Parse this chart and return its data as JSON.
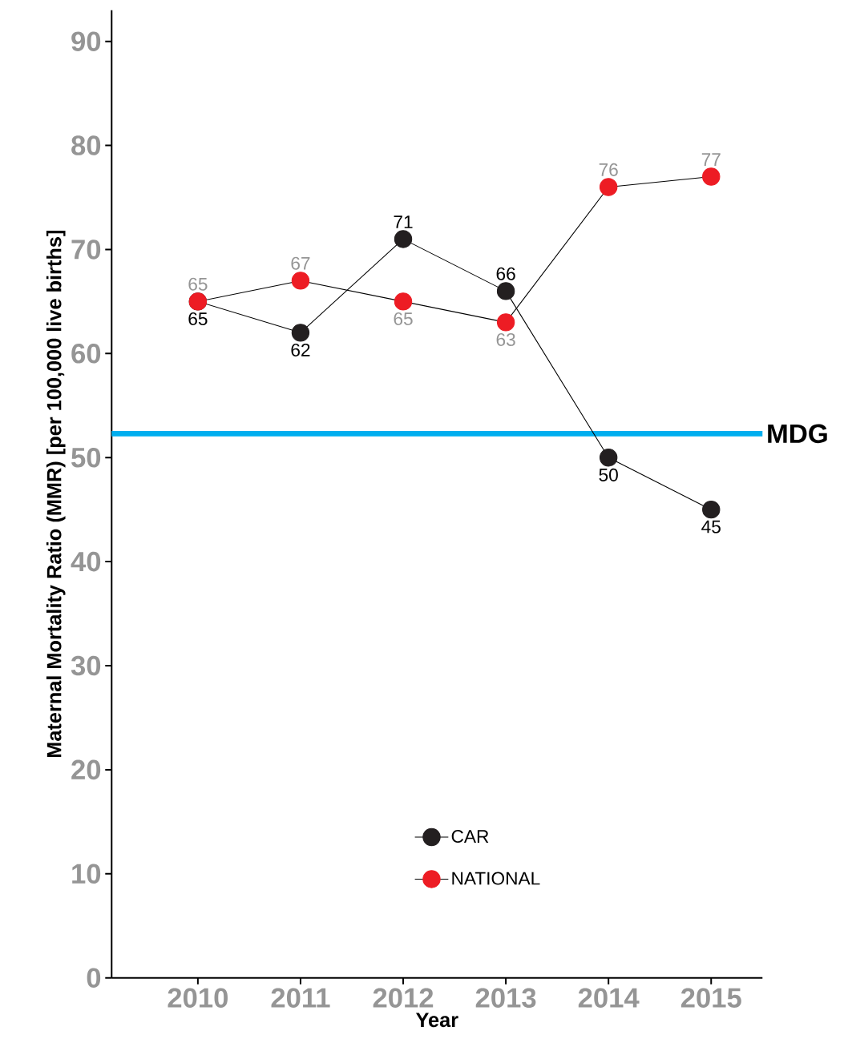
{
  "chart_data": {
    "type": "line",
    "xlabel": "Year",
    "ylabel": "Maternal Mortality Ratio (MMR) [per 100,000 live births]",
    "categories": [
      "2010",
      "2011",
      "2012",
      "2013",
      "2014",
      "2015"
    ],
    "series": [
      {
        "name": "CAR",
        "color": "#231f20",
        "values": [
          65,
          62,
          71,
          66,
          50,
          45
        ]
      },
      {
        "name": "NATIONAL",
        "color": "#ed1c24",
        "values": [
          65,
          67,
          65,
          63,
          76,
          77
        ]
      }
    ],
    "ylim": [
      0,
      93
    ],
    "yticks": [
      0,
      10,
      20,
      30,
      40,
      50,
      60,
      70,
      80,
      90
    ],
    "ref_lines": [
      {
        "axis": "y",
        "value": 52.3,
        "label": "MDG",
        "color": "#00aeef"
      }
    ],
    "data_labels": true,
    "marker": "circle",
    "line_style": "solid",
    "legend": "bottom",
    "grid": false
  }
}
